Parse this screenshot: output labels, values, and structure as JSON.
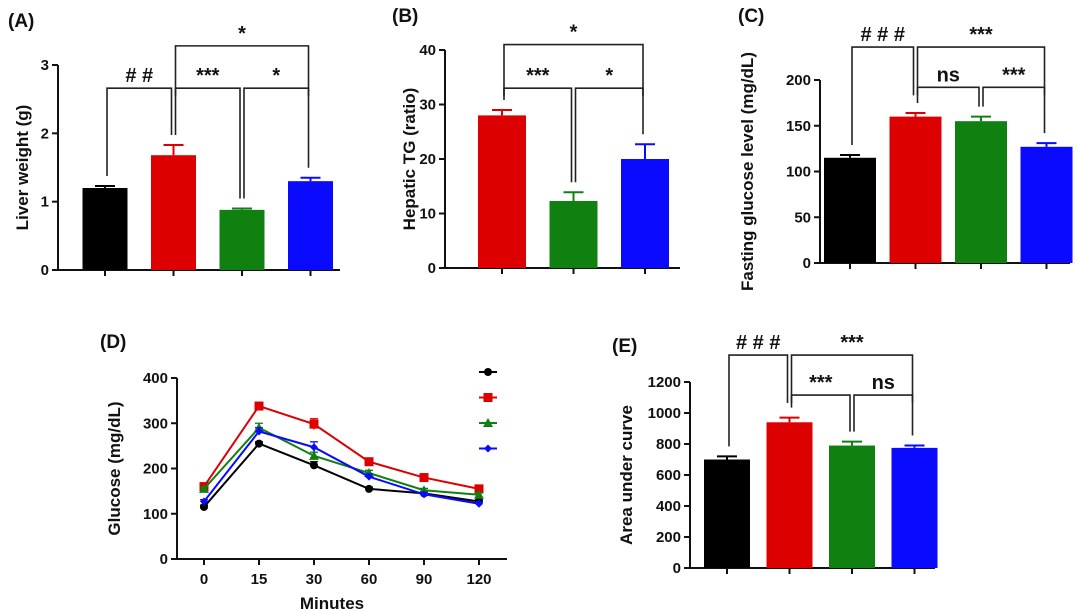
{
  "chart_data": [
    {
      "panel": "(A)",
      "type": "bar",
      "ylabel": "Liver weight (g)",
      "ylim": [
        0,
        3
      ],
      "yticks": [
        "0",
        "1",
        "2",
        "3"
      ],
      "values": [
        1.2,
        1.68,
        0.88,
        1.3
      ],
      "errors": [
        0.03,
        0.15,
        0.02,
        0.05
      ],
      "colors": [
        "#000000",
        "#dd0000",
        "#108010",
        "#0a0aff"
      ],
      "significance": [
        {
          "from": 0,
          "to": 1,
          "label": "# #",
          "level": 2.66
        },
        {
          "from": 1,
          "to": 2,
          "label": "***",
          "level": 2.66
        },
        {
          "from": 2,
          "to": 3,
          "label": "*",
          "level": 2.66
        },
        {
          "from": 1,
          "to": 3,
          "label": "*",
          "level": 3.28
        }
      ]
    },
    {
      "panel": "(B)",
      "type": "bar",
      "ylabel": "Hepatic TG (ratio)",
      "ylim": [
        0,
        40
      ],
      "yticks": [
        "0",
        "10",
        "20",
        "30",
        "40"
      ],
      "values": [
        28,
        12.3,
        20
      ],
      "errors": [
        1,
        1.6,
        2.7
      ],
      "colors": [
        "#dd0000",
        "#108010",
        "#0a0aff"
      ],
      "significance": [
        {
          "from": 0,
          "to": 1,
          "label": "***",
          "level": 33
        },
        {
          "from": 1,
          "to": 2,
          "label": "*",
          "level": 33
        },
        {
          "from": 0,
          "to": 2,
          "label": "*",
          "level": 41
        }
      ]
    },
    {
      "panel": "(C)",
      "type": "bar",
      "ylabel": "Fasting glucose level (mg/dL)",
      "ylim": [
        0,
        200
      ],
      "yticks": [
        "0",
        "50",
        "100",
        "150",
        "200"
      ],
      "values": [
        115,
        160,
        155,
        127
      ],
      "errors": [
        3,
        4,
        5,
        4
      ],
      "colors": [
        "#000000",
        "#dd0000",
        "#108010",
        "#0a0aff"
      ],
      "significance": [
        {
          "from": 0,
          "to": 1,
          "label": "# # #",
          "level": 236
        },
        {
          "from": 1,
          "to": 3,
          "label": "***",
          "level": 236
        },
        {
          "from": 1,
          "to": 2,
          "label": "ns",
          "level": 192
        },
        {
          "from": 2,
          "to": 3,
          "label": "***",
          "level": 192
        }
      ]
    },
    {
      "panel": "(D)",
      "type": "line",
      "ylabel": "Glucose (mg/dL)",
      "xlabel": "Minutes",
      "x": [
        "0",
        "15",
        "30",
        "60",
        "90",
        "120"
      ],
      "ylim": [
        0,
        400
      ],
      "yticks": [
        "0",
        "100",
        "200",
        "300",
        "400"
      ],
      "legend": "top-right",
      "series": [
        {
          "color": "#000000",
          "marker": "circle",
          "values": [
            115,
            255,
            207,
            155,
            145,
            127
          ],
          "errors": [
            4,
            4,
            8,
            4,
            4,
            4
          ]
        },
        {
          "color": "#dd0000",
          "marker": "square",
          "values": [
            160,
            338,
            298,
            215,
            180,
            155
          ],
          "errors": [
            5,
            8,
            12,
            6,
            4,
            4
          ]
        },
        {
          "color": "#108010",
          "marker": "triangle",
          "values": [
            155,
            290,
            228,
            190,
            152,
            142
          ],
          "errors": [
            4,
            10,
            8,
            6,
            4,
            4
          ]
        },
        {
          "color": "#0a0aff",
          "marker": "diamond",
          "values": [
            127,
            282,
            247,
            182,
            143,
            122
          ],
          "errors": [
            4,
            8,
            12,
            6,
            4,
            4
          ]
        }
      ]
    },
    {
      "panel": "(E)",
      "type": "bar",
      "ylabel": "Area under curve",
      "ylim": [
        0,
        1200
      ],
      "yticks": [
        "0",
        "200",
        "400",
        "600",
        "800",
        "1000",
        "1200"
      ],
      "values": [
        700,
        940,
        790,
        775
      ],
      "errors": [
        20,
        30,
        25,
        15
      ],
      "colors": [
        "#000000",
        "#dd0000",
        "#108010",
        "#0a0aff"
      ],
      "significance": [
        {
          "from": 0,
          "to": 1,
          "label": "# # #",
          "level": 1374
        },
        {
          "from": 1,
          "to": 3,
          "label": "***",
          "level": 1374
        },
        {
          "from": 1,
          "to": 2,
          "label": "***",
          "level": 1116
        },
        {
          "from": 2,
          "to": 3,
          "label": "ns",
          "level": 1116
        }
      ]
    }
  ]
}
